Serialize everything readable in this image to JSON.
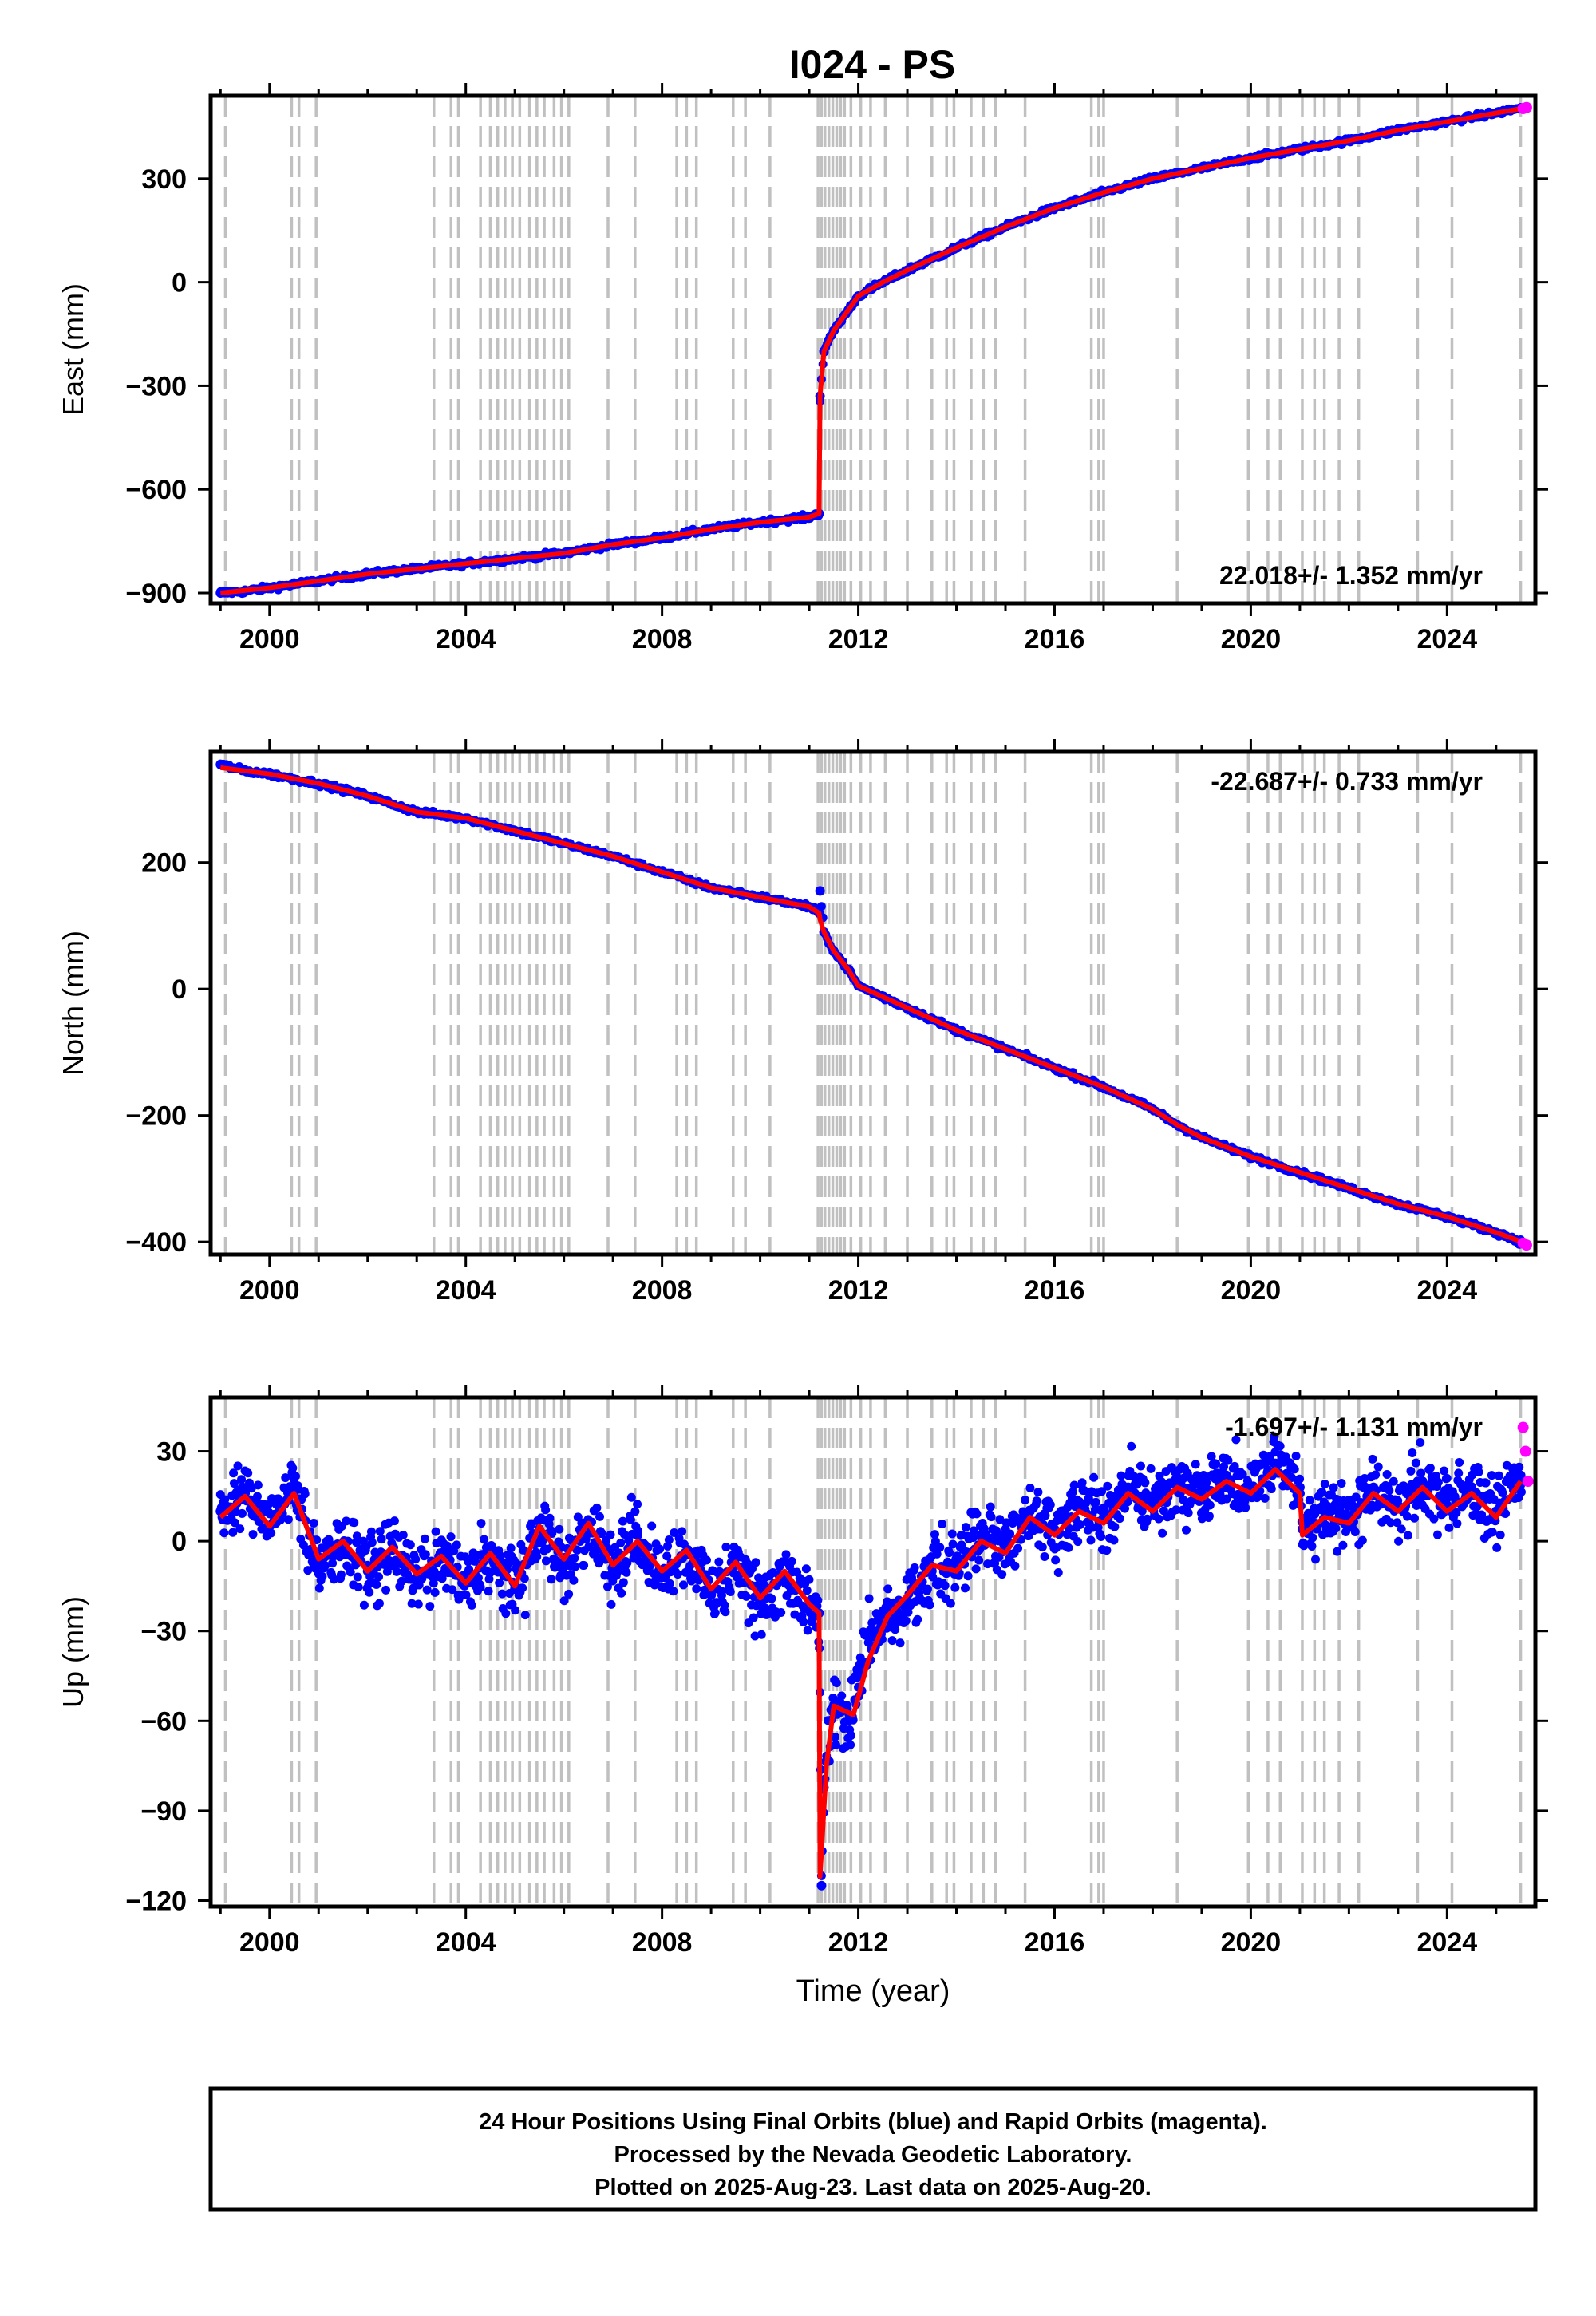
{
  "title": "I024 - PS",
  "colors": {
    "final_points": "#0000ff",
    "rapid_points": "#ff00ff",
    "model_line": "#ff0000",
    "event_lines": "#c0c0c0",
    "frame": "#000000"
  },
  "footer": {
    "lines": [
      "24 Hour Positions Using Final Orbits (blue) and Rapid Orbits (magenta).",
      "Processed by the Nevada Geodetic Laboratory.",
      "Plotted on 2025-Aug-23. Last data on 2025-Aug-20."
    ]
  },
  "chart_data": [
    {
      "type": "scatter",
      "ylabel": "East (mm)",
      "xlabel": "",
      "xlim": [
        1998.8,
        2025.8
      ],
      "ylim": [
        -930,
        540
      ],
      "yticks": [
        -900,
        -600,
        -300,
        0,
        300
      ],
      "yticklabels": [
        "−900",
        "−600",
        "−300",
        "0",
        "300"
      ],
      "xticks": [
        2000,
        2004,
        2008,
        2012,
        2016,
        2020,
        2024
      ],
      "xticklabels": [
        "2000",
        "2004",
        "2008",
        "2012",
        "2016",
        "2020",
        "2024"
      ],
      "rate_label": "22.018+/- 1.352 mm/yr",
      "rate_position": "bottom-right",
      "series": [
        {
          "role": "final",
          "x": [
            1999.0,
            1999.5,
            2000.0,
            2000.5,
            2001.0,
            2002.0,
            2003.0,
            2004.0,
            2005.0,
            2006.0,
            2007.0,
            2008.0,
            2009.0,
            2010.0,
            2011.0,
            2011.2,
            2011.22,
            2011.3,
            2011.5,
            2011.8,
            2012.0,
            2012.5,
            2013.0,
            2014.0,
            2015.0,
            2016.0,
            2017.0,
            2018.0,
            2019.0,
            2020.0,
            2021.0,
            2022.0,
            2023.0,
            2024.0,
            2025.0,
            2025.5
          ],
          "y": [
            -900,
            -895,
            -885,
            -875,
            -865,
            -845,
            -830,
            -815,
            -800,
            -785,
            -760,
            -740,
            -715,
            -695,
            -680,
            -670,
            -330,
            -200,
            -140,
            -80,
            -40,
            0,
            35,
            100,
            160,
            215,
            260,
            300,
            330,
            360,
            385,
            410,
            440,
            465,
            490,
            505
          ]
        },
        {
          "role": "rapid",
          "x": [
            2025.55,
            2025.62
          ],
          "y": [
            503,
            506
          ]
        }
      ],
      "model": {
        "x": [
          1999.0,
          2000.0,
          2001.0,
          2002.0,
          2003.0,
          2004.0,
          2005.0,
          2006.0,
          2007.0,
          2008.0,
          2009.0,
          2010.0,
          2011.0,
          2011.2,
          2011.22,
          2011.3,
          2011.5,
          2011.8,
          2012.0,
          2012.5,
          2013.0,
          2014.0,
          2015.0,
          2016.0,
          2017.0,
          2018.0,
          2019.0,
          2020.0,
          2021.0,
          2022.0,
          2023.0,
          2024.0,
          2025.0,
          2025.6
        ],
        "y": [
          -900,
          -885,
          -865,
          -845,
          -830,
          -815,
          -800,
          -785,
          -760,
          -740,
          -715,
          -695,
          -680,
          -670,
          -330,
          -200,
          -140,
          -80,
          -40,
          0,
          35,
          100,
          160,
          215,
          260,
          300,
          330,
          360,
          385,
          410,
          440,
          465,
          490,
          505
        ]
      }
    },
    {
      "type": "scatter",
      "ylabel": "North (mm)",
      "xlabel": "",
      "xlim": [
        1998.8,
        2025.8
      ],
      "ylim": [
        -420,
        375
      ],
      "yticks": [
        -400,
        -200,
        0,
        200
      ],
      "yticklabels": [
        "−400",
        "−200",
        "0",
        "200"
      ],
      "xticks": [
        2000,
        2004,
        2008,
        2012,
        2016,
        2020,
        2024
      ],
      "xticklabels": [
        "2000",
        "2004",
        "2008",
        "2012",
        "2016",
        "2020",
        "2024"
      ],
      "rate_label": "-22.687+/- 0.733 mm/yr",
      "rate_position": "top-right",
      "series": [
        {
          "role": "final",
          "x": [
            1999.0,
            1999.5,
            2000.0,
            2000.5,
            2001.0,
            2002.0,
            2003.0,
            2004.0,
            2005.0,
            2006.0,
            2007.0,
            2008.0,
            2009.0,
            2010.0,
            2011.0,
            2011.2,
            2011.22,
            2011.3,
            2011.5,
            2011.8,
            2012.0,
            2013.0,
            2014.0,
            2015.0,
            2016.0,
            2017.0,
            2018.0,
            2018.5,
            2019.0,
            2020.0,
            2021.0,
            2022.0,
            2023.0,
            2024.0,
            2025.0,
            2025.5
          ],
          "y": [
            355,
            345,
            340,
            332,
            325,
            305,
            280,
            270,
            250,
            230,
            210,
            185,
            160,
            145,
            130,
            120,
            155,
            90,
            60,
            30,
            5,
            -30,
            -65,
            -95,
            -125,
            -155,
            -190,
            -215,
            -235,
            -265,
            -290,
            -315,
            -340,
            -360,
            -385,
            -400
          ]
        },
        {
          "role": "rapid",
          "x": [
            2025.55,
            2025.62
          ],
          "y": [
            -402,
            -405
          ]
        }
      ],
      "model": {
        "x": [
          1999.0,
          2000.0,
          2001.0,
          2002.0,
          2003.0,
          2004.0,
          2005.0,
          2006.0,
          2007.0,
          2008.0,
          2009.0,
          2010.0,
          2011.0,
          2011.2,
          2011.22,
          2011.3,
          2011.5,
          2011.8,
          2012.0,
          2013.0,
          2014.0,
          2015.0,
          2016.0,
          2017.0,
          2018.0,
          2018.5,
          2019.0,
          2020.0,
          2021.0,
          2022.0,
          2023.0,
          2024.0,
          2025.0,
          2025.6
        ],
        "y": [
          350,
          340,
          325,
          305,
          280,
          270,
          250,
          230,
          210,
          185,
          160,
          145,
          130,
          120,
          110,
          90,
          60,
          30,
          5,
          -30,
          -65,
          -95,
          -125,
          -155,
          -190,
          -215,
          -235,
          -265,
          -290,
          -315,
          -340,
          -360,
          -385,
          -402
        ]
      }
    },
    {
      "type": "scatter",
      "ylabel": "Up (mm)",
      "xlabel": "Time (year)",
      "xlim": [
        1998.8,
        2025.8
      ],
      "ylim": [
        -122,
        48
      ],
      "yticks": [
        -120,
        -90,
        -60,
        -30,
        0,
        30
      ],
      "yticklabels": [
        "−120",
        "−90",
        "−60",
        "−30",
        "0",
        "30"
      ],
      "xticks": [
        2000,
        2004,
        2008,
        2012,
        2016,
        2020,
        2024
      ],
      "xticklabels": [
        "2000",
        "2004",
        "2008",
        "2012",
        "2016",
        "2020",
        "2024"
      ],
      "rate_label": "-1.697+/- 1.131 mm/yr",
      "rate_position": "top-right",
      "series": [
        {
          "role": "final",
          "x": [
            1999.0,
            1999.5,
            2000.0,
            2000.5,
            2001.0,
            2001.5,
            2002.0,
            2002.5,
            2003.0,
            2003.5,
            2004.0,
            2004.5,
            2005.0,
            2005.5,
            2006.0,
            2006.5,
            2007.0,
            2007.5,
            2008.0,
            2008.5,
            2009.0,
            2009.5,
            2010.0,
            2010.5,
            2011.0,
            2011.2,
            2011.25,
            2011.3,
            2011.5,
            2011.8,
            2012.0,
            2012.3,
            2012.6,
            2013.0,
            2013.5,
            2014.0,
            2014.5,
            2015.0,
            2015.5,
            2016.0,
            2016.5,
            2017.0,
            2017.5,
            2018.0,
            2018.5,
            2019.0,
            2019.5,
            2020.0,
            2020.5,
            2021.0,
            2021.05,
            2021.5,
            2022.0,
            2022.5,
            2023.0,
            2023.5,
            2024.0,
            2024.5,
            2025.0,
            2025.5
          ],
          "y": [
            10,
            16,
            5,
            18,
            -8,
            -2,
            -10,
            -3,
            -12,
            -6,
            -14,
            -5,
            -16,
            4,
            -8,
            6,
            -10,
            2,
            -12,
            -4,
            -18,
            -8,
            -20,
            -12,
            -22,
            -24,
            -115,
            -80,
            -55,
            -60,
            -45,
            -30,
            -25,
            -20,
            -10,
            -8,
            2,
            -2,
            10,
            4,
            12,
            8,
            18,
            12,
            20,
            16,
            22,
            18,
            26,
            18,
            4,
            10,
            8,
            18,
            12,
            20,
            12,
            18,
            10,
            22
          ]
        },
        {
          "role": "rapid",
          "x": [
            2025.55,
            2025.6,
            2025.65
          ],
          "y": [
            38,
            30,
            20
          ]
        }
      ],
      "model": {
        "x": [
          1999.0,
          1999.5,
          2000.0,
          2000.5,
          2001.0,
          2001.5,
          2002.0,
          2002.5,
          2003.0,
          2003.5,
          2004.0,
          2004.5,
          2005.0,
          2005.5,
          2006.0,
          2006.5,
          2007.0,
          2007.5,
          2008.0,
          2008.5,
          2009.0,
          2009.5,
          2010.0,
          2010.5,
          2011.0,
          2011.2,
          2011.22,
          2011.35,
          2011.5,
          2011.9,
          2012.2,
          2012.6,
          2013.0,
          2013.5,
          2014.0,
          2014.5,
          2015.0,
          2015.5,
          2016.0,
          2016.5,
          2017.0,
          2017.5,
          2018.0,
          2018.5,
          2019.0,
          2019.5,
          2020.0,
          2020.5,
          2021.0,
          2021.05,
          2021.5,
          2022.0,
          2022.5,
          2023.0,
          2023.5,
          2024.0,
          2024.5,
          2025.0,
          2025.5
        ],
        "y": [
          8,
          15,
          5,
          16,
          -6,
          0,
          -10,
          -2,
          -11,
          -5,
          -14,
          -4,
          -15,
          5,
          -6,
          6,
          -8,
          0,
          -10,
          -3,
          -16,
          -7,
          -19,
          -10,
          -21,
          -24,
          -112,
          -75,
          -55,
          -58,
          -40,
          -25,
          -18,
          -8,
          -10,
          0,
          -4,
          8,
          2,
          10,
          6,
          16,
          10,
          18,
          14,
          20,
          16,
          24,
          16,
          2,
          8,
          6,
          16,
          10,
          18,
          10,
          16,
          8,
          20
        ]
      }
    }
  ],
  "event_lines": [
    1999.1,
    2000.45,
    2000.6,
    2000.95,
    2003.35,
    2003.7,
    2003.85,
    2004.3,
    2004.5,
    2004.65,
    2004.8,
    2004.95,
    2005.1,
    2005.3,
    2005.45,
    2005.6,
    2005.8,
    2005.95,
    2006.1,
    2006.9,
    2007.45,
    2008.3,
    2008.5,
    2008.7,
    2009.45,
    2009.7,
    2010.2,
    2011.18,
    2011.25,
    2011.32,
    2011.4,
    2011.48,
    2011.56,
    2011.64,
    2011.72,
    2011.85,
    2012.05,
    2012.25,
    2012.55,
    2013.0,
    2013.5,
    2013.8,
    2013.95,
    2014.3,
    2014.55,
    2014.8,
    2015.4,
    2016.75,
    2016.9,
    2017.0,
    2018.5,
    2019.95,
    2020.35,
    2020.6,
    2021.05,
    2021.3,
    2021.5,
    2021.8,
    2022.2,
    2023.4,
    2024.1,
    2025.5
  ]
}
